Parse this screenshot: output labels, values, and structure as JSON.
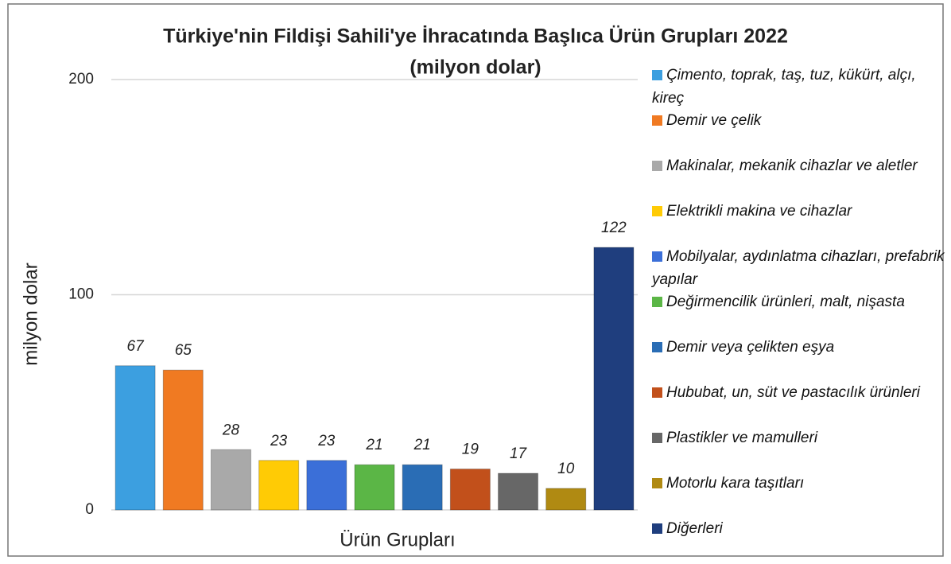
{
  "chart_data": {
    "type": "bar",
    "title": "Türkiye'nin Fildişi Sahili'ye İhracatında Başlıca Ürün Grupları 2022",
    "subtitle": "(milyon dolar)",
    "x_label": "Ürün Grupları",
    "y_label": "milyon dolar",
    "categories": [
      "Çimento, toprak, taş, tuz, kükürt, alçı, kireç",
      "Demir ve çelik",
      "Makinalar, mekanik cihazlar ve aletler",
      "Elektrikli makina ve cihazlar",
      "Mobilyalar, aydınlatma cihazları, prefabrik yapılar",
      "Değirmencilik ürünleri, malt, nişasta",
      "Demir veya çelikten eşya",
      "Hububat, un, süt ve pastacılık ürünleri",
      "Plastikler ve mamulleri",
      "Motorlu kara taşıtları",
      "Diğerleri"
    ],
    "values": [
      67,
      65,
      28,
      23,
      23,
      21,
      21,
      19,
      17,
      10,
      122
    ],
    "colors": [
      "#3c9fe0",
      "#f07a22",
      "#a9a9a9",
      "#ffcb05",
      "#3b6fd8",
      "#5bb646",
      "#2a6db5",
      "#c2501b",
      "#676767",
      "#b08a12",
      "#1f3e7e"
    ],
    "ylim": [
      0,
      200
    ],
    "yticks": [
      0,
      100,
      200
    ],
    "grid": true,
    "legend": "right"
  }
}
